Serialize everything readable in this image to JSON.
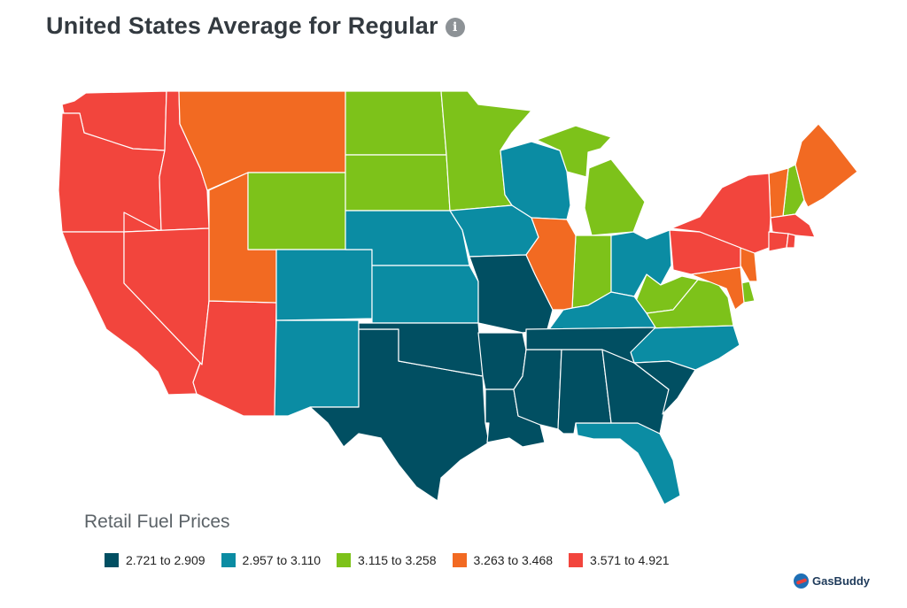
{
  "header": {
    "title": "United States Average for Regular",
    "info_icon": "info-icon"
  },
  "legend": {
    "title": "Retail Fuel Prices",
    "ranges": [
      {
        "label": "2.721 to 2.909",
        "color": "#014f62"
      },
      {
        "label": "2.957 to 3.110",
        "color": "#0b8ca3"
      },
      {
        "label": "3.115 to 3.258",
        "color": "#7dc21a"
      },
      {
        "label": "3.263 to 3.468",
        "color": "#f26a22"
      },
      {
        "label": "3.571 to 4.921",
        "color": "#f2453d"
      }
    ]
  },
  "states": [
    {
      "name": "Washington",
      "tier": 4
    },
    {
      "name": "Oregon",
      "tier": 4
    },
    {
      "name": "California",
      "tier": 4
    },
    {
      "name": "Idaho",
      "tier": 4
    },
    {
      "name": "Nevada",
      "tier": 4
    },
    {
      "name": "Arizona",
      "tier": 4
    },
    {
      "name": "Montana",
      "tier": 3
    },
    {
      "name": "Utah",
      "tier": 3
    },
    {
      "name": "Wyoming",
      "tier": 2
    },
    {
      "name": "North Dakota",
      "tier": 2
    },
    {
      "name": "South Dakota",
      "tier": 2
    },
    {
      "name": "Minnesota",
      "tier": 2
    },
    {
      "name": "Michigan",
      "tier": 2
    },
    {
      "name": "Indiana",
      "tier": 2
    },
    {
      "name": "West Virginia",
      "tier": 2
    },
    {
      "name": "Virginia",
      "tier": 2
    },
    {
      "name": "New Hampshire",
      "tier": 2
    },
    {
      "name": "Delaware",
      "tier": 2
    },
    {
      "name": "Colorado",
      "tier": 1
    },
    {
      "name": "New Mexico",
      "tier": 1
    },
    {
      "name": "Nebraska",
      "tier": 1
    },
    {
      "name": "Kansas",
      "tier": 1
    },
    {
      "name": "Iowa",
      "tier": 1
    },
    {
      "name": "Wisconsin",
      "tier": 1
    },
    {
      "name": "Ohio",
      "tier": 1
    },
    {
      "name": "Kentucky",
      "tier": 1
    },
    {
      "name": "North Carolina",
      "tier": 1
    },
    {
      "name": "Florida",
      "tier": 1
    },
    {
      "name": "Texas",
      "tier": 0
    },
    {
      "name": "Oklahoma",
      "tier": 0
    },
    {
      "name": "Missouri",
      "tier": 0
    },
    {
      "name": "Arkansas",
      "tier": 0
    },
    {
      "name": "Louisiana",
      "tier": 0
    },
    {
      "name": "Mississippi",
      "tier": 0
    },
    {
      "name": "Alabama",
      "tier": 0
    },
    {
      "name": "Georgia",
      "tier": 0
    },
    {
      "name": "Tennessee",
      "tier": 0
    },
    {
      "name": "South Carolina",
      "tier": 0
    },
    {
      "name": "Illinois",
      "tier": 3
    },
    {
      "name": "Maine",
      "tier": 3
    },
    {
      "name": "Vermont",
      "tier": 3
    },
    {
      "name": "New Jersey",
      "tier": 3
    },
    {
      "name": "Maryland",
      "tier": 3
    },
    {
      "name": "New York",
      "tier": 4
    },
    {
      "name": "Pennsylvania",
      "tier": 4
    },
    {
      "name": "Massachusetts",
      "tier": 4
    },
    {
      "name": "Connecticut",
      "tier": 4
    },
    {
      "name": "Rhode Island",
      "tier": 4
    }
  ],
  "brand": {
    "name": "GasBuddy",
    "icon": "gasbuddy-logo-icon"
  }
}
